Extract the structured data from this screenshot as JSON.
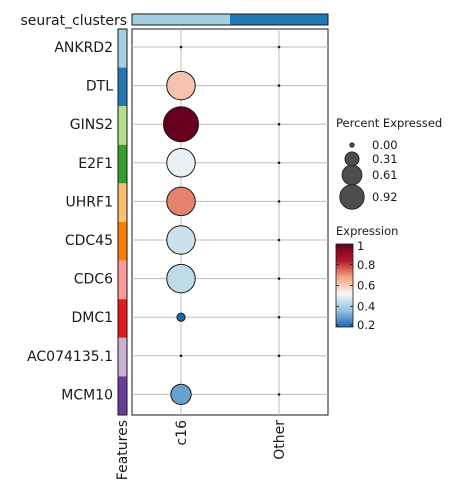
{
  "chart_data": {
    "type": "dotplot",
    "top_annotation_label": "seurat_clusters",
    "left_annotation_label": "Features",
    "top_annotation_colors": [
      "#a6cee3",
      "#1f78b4"
    ],
    "clusters": [
      "c16",
      "Other"
    ],
    "genes": [
      "ANKRD2",
      "DTL",
      "GINS2",
      "E2F1",
      "UHRF1",
      "CDC45",
      "CDC6",
      "DMC1",
      "AC074135.1",
      "MCM10"
    ],
    "gene_colors": [
      "#a6cee3",
      "#1f78b4",
      "#b2df8a",
      "#33a02c",
      "#fdbf6f",
      "#ff7f00",
      "#fb9a99",
      "#e31a1c",
      "#cab2d6",
      "#6a3d9a"
    ],
    "percent_expressed": [
      [
        0.0,
        0.0
      ],
      [
        0.61,
        0.0
      ],
      [
        0.92,
        0.0
      ],
      [
        0.61,
        0.0
      ],
      [
        0.61,
        0.0
      ],
      [
        0.61,
        0.0
      ],
      [
        0.61,
        0.0
      ],
      [
        0.05,
        0.0
      ],
      [
        0.0,
        0.0
      ],
      [
        0.31,
        0.0
      ]
    ],
    "expression": [
      [
        null,
        null
      ],
      [
        0.62,
        null
      ],
      [
        1.0,
        null
      ],
      [
        0.5,
        null
      ],
      [
        0.72,
        null
      ],
      [
        0.45,
        null
      ],
      [
        0.43,
        null
      ],
      [
        0.2,
        null
      ],
      [
        null,
        null
      ],
      [
        0.3,
        null
      ]
    ],
    "size_legend": {
      "title": "Percent Expressed",
      "labels": [
        "0.00",
        "0.31",
        "0.61",
        "0.92"
      ],
      "values": [
        0.0,
        0.31,
        0.61,
        0.92
      ]
    },
    "color_legend": {
      "title": "Expression",
      "labels": [
        "1",
        "0.8",
        "0.6",
        "0.4",
        "0.2"
      ],
      "values": [
        1.0,
        0.8,
        0.6,
        0.4,
        0.2
      ],
      "range": [
        0.2,
        1.0
      ],
      "colors": [
        "#2166ac",
        "#92c5de",
        "#f7f7f7",
        "#f4a582",
        "#b2182b",
        "#67001f"
      ]
    }
  }
}
